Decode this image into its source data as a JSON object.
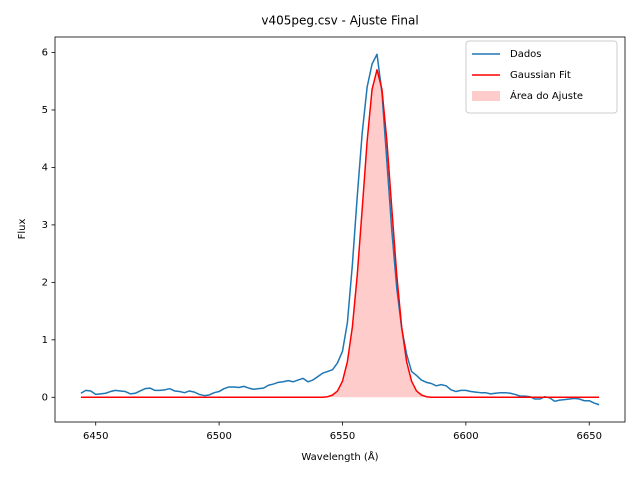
{
  "chart_data": {
    "type": "line",
    "title": "v405peg.csv - Ajuste Final",
    "x_label": "Wavelength (Å)",
    "y_label": "Flux",
    "x": [
      6444,
      6446,
      6448,
      6450,
      6452,
      6454,
      6456,
      6458,
      6460,
      6462,
      6464,
      6466,
      6468,
      6470,
      6472,
      6474,
      6476,
      6478,
      6480,
      6482,
      6484,
      6486,
      6488,
      6490,
      6492,
      6494,
      6496,
      6498,
      6500,
      6502,
      6504,
      6506,
      6508,
      6510,
      6512,
      6514,
      6516,
      6518,
      6520,
      6522,
      6524,
      6526,
      6528,
      6530,
      6532,
      6534,
      6536,
      6538,
      6540,
      6542,
      6544,
      6546,
      6548,
      6550,
      6552,
      6554,
      6556,
      6558,
      6560,
      6562,
      6564,
      6566,
      6568,
      6570,
      6572,
      6574,
      6576,
      6578,
      6580,
      6582,
      6584,
      6586,
      6588,
      6590,
      6592,
      6594,
      6596,
      6598,
      6600,
      6602,
      6604,
      6606,
      6608,
      6610,
      6612,
      6614,
      6616,
      6618,
      6620,
      6622,
      6624,
      6626,
      6628,
      6630,
      6632,
      6634,
      6636,
      6638,
      6640,
      6642,
      6644,
      6646,
      6648,
      6650,
      6652,
      6654
    ],
    "series": [
      {
        "name": "Dados",
        "kind": "line",
        "color": "#1f77b4",
        "values": [
          0.07,
          0.12,
          0.11,
          0.05,
          0.06,
          0.07,
          0.1,
          0.12,
          0.11,
          0.1,
          0.06,
          0.07,
          0.11,
          0.15,
          0.16,
          0.12,
          0.12,
          0.13,
          0.15,
          0.11,
          0.1,
          0.08,
          0.11,
          0.09,
          0.05,
          0.03,
          0.04,
          0.08,
          0.1,
          0.15,
          0.18,
          0.18,
          0.17,
          0.19,
          0.16,
          0.14,
          0.15,
          0.16,
          0.21,
          0.23,
          0.26,
          0.27,
          0.29,
          0.27,
          0.3,
          0.33,
          0.27,
          0.3,
          0.36,
          0.42,
          0.45,
          0.48,
          0.6,
          0.8,
          1.3,
          2.3,
          3.5,
          4.6,
          5.4,
          5.8,
          5.97,
          5.3,
          4.1,
          2.9,
          1.9,
          1.2,
          0.75,
          0.45,
          0.38,
          0.3,
          0.26,
          0.24,
          0.2,
          0.22,
          0.2,
          0.13,
          0.1,
          0.12,
          0.12,
          0.1,
          0.09,
          0.08,
          0.08,
          0.06,
          0.07,
          0.08,
          0.08,
          0.07,
          0.05,
          0.02,
          0.02,
          0.01,
          -0.03,
          -0.03,
          0.01,
          -0.01,
          -0.07,
          -0.05,
          -0.04,
          -0.03,
          -0.02,
          -0.03,
          -0.06,
          -0.06,
          -0.1,
          -0.13
        ]
      },
      {
        "name": "Gaussian Fit",
        "kind": "line",
        "color": "#ff0000",
        "values": [
          0,
          0,
          0,
          0,
          0,
          0,
          0,
          0,
          0,
          0,
          0,
          0,
          0,
          0,
          0,
          0,
          0,
          0,
          0,
          0,
          0,
          0,
          0,
          0,
          0,
          0,
          0,
          0,
          0,
          0,
          0,
          0,
          0,
          0,
          0,
          0,
          0,
          0,
          0,
          0,
          0,
          0,
          0,
          0,
          0,
          0,
          0,
          0,
          0,
          0,
          0.01,
          0.04,
          0.11,
          0.28,
          0.62,
          1.22,
          2.13,
          3.28,
          4.46,
          5.36,
          5.7,
          5.36,
          4.46,
          3.28,
          2.13,
          1.22,
          0.62,
          0.28,
          0.11,
          0.04,
          0.01,
          0,
          0,
          0,
          0,
          0,
          0,
          0,
          0,
          0,
          0,
          0,
          0,
          0,
          0,
          0,
          0,
          0,
          0,
          0,
          0,
          0,
          0,
          0,
          0,
          0,
          0,
          0,
          0,
          0,
          0,
          0,
          0,
          0,
          0,
          0
        ]
      },
      {
        "name": "Área do Ajuste",
        "kind": "area",
        "color": "rgba(255,0,0,0.2)",
        "values": [
          0,
          0,
          0,
          0,
          0,
          0,
          0,
          0,
          0,
          0,
          0,
          0,
          0,
          0,
          0,
          0,
          0,
          0,
          0,
          0,
          0,
          0,
          0,
          0,
          0,
          0,
          0,
          0,
          0,
          0,
          0,
          0,
          0,
          0,
          0,
          0,
          0,
          0,
          0,
          0,
          0,
          0,
          0,
          0,
          0,
          0,
          0,
          0,
          0,
          0,
          0.01,
          0.04,
          0.11,
          0.28,
          0.62,
          1.22,
          2.13,
          3.28,
          4.46,
          5.36,
          5.7,
          5.36,
          4.46,
          3.28,
          2.13,
          1.22,
          0.62,
          0.28,
          0.11,
          0.04,
          0.01,
          0,
          0,
          0,
          0,
          0,
          0,
          0,
          0,
          0,
          0,
          0,
          0,
          0,
          0,
          0,
          0,
          0,
          0,
          0,
          0,
          0,
          0,
          0,
          0,
          0,
          0,
          0,
          0,
          0,
          0,
          0,
          0,
          0,
          0,
          0
        ]
      }
    ],
    "xlim": [
      6433.5,
      6664.5
    ],
    "ylim": [
      -0.43,
      6.27
    ],
    "xticks": [
      6450,
      6500,
      6550,
      6600,
      6650
    ],
    "yticks": [
      0,
      1,
      2,
      3,
      4,
      5,
      6
    ],
    "legend": "upper right",
    "grid": false
  }
}
